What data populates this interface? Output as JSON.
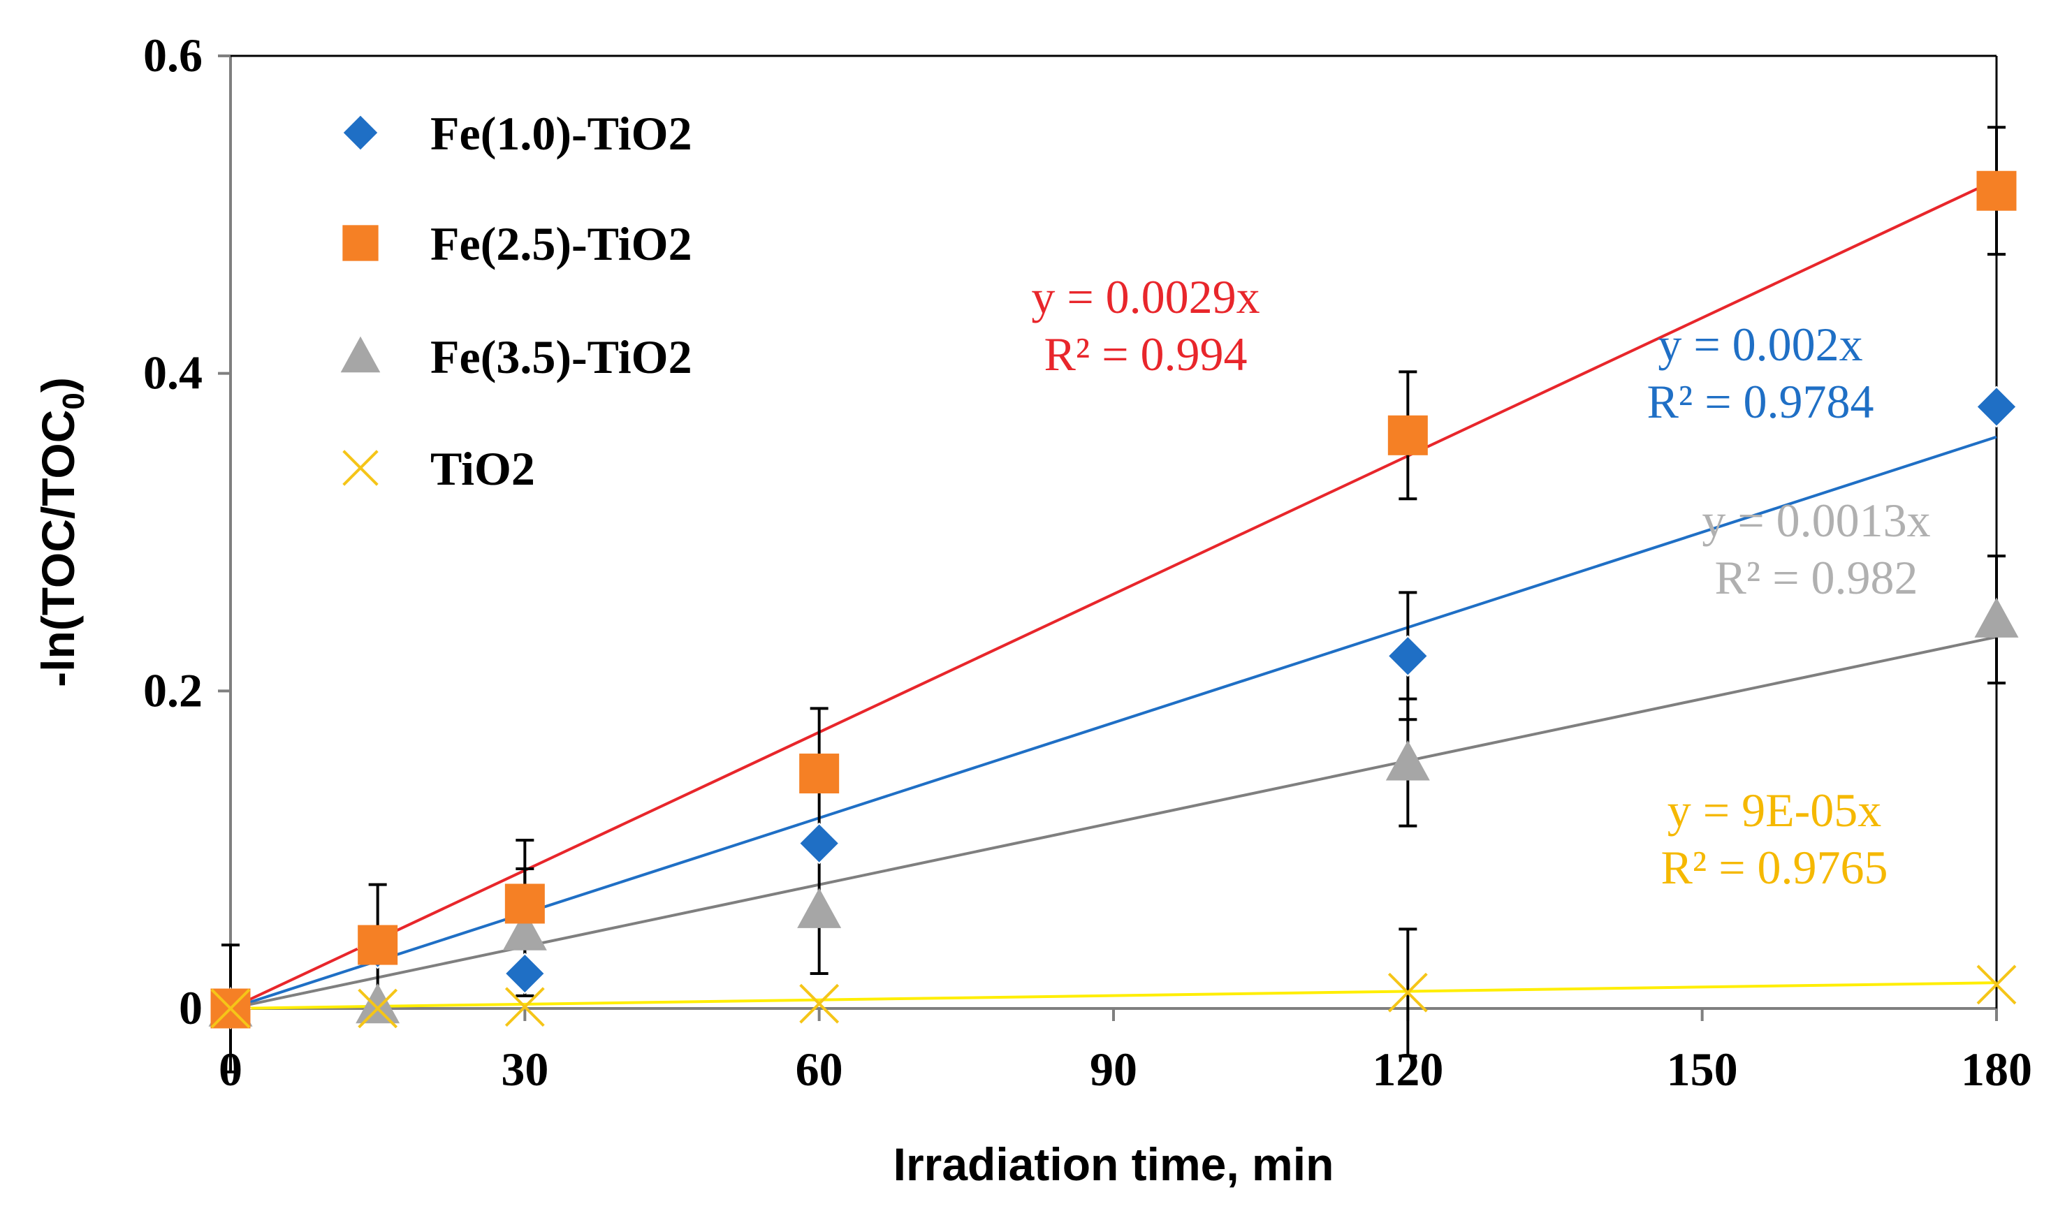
{
  "chart_data": {
    "type": "scatter",
    "xlabel": "Irradiation time, min",
    "ylabel_main": "-ln(TOC/TOC",
    "ylabel_sub": "0",
    "ylabel_end": ")",
    "xlim": [
      0,
      180
    ],
    "ylim": [
      0,
      0.6
    ],
    "xticks": [
      0,
      30,
      60,
      90,
      120,
      150,
      180
    ],
    "xtick_labels": [
      "0",
      "30",
      "60",
      "90",
      "120",
      "150",
      "180"
    ],
    "yticks": [
      0,
      0.2,
      0.4,
      0.6
    ],
    "ytick_labels": [
      "0",
      "0.2",
      "0.4",
      "0.6"
    ],
    "grid": false,
    "legend_position": "top-left",
    "series": [
      {
        "name": "Fe(1.0)-TiO2",
        "marker": "diamond",
        "color": "#1f6fc5",
        "x": [
          0,
          15,
          30,
          60,
          120,
          180
        ],
        "y": [
          0,
          0.038,
          0.022,
          0.104,
          0.222,
          0.379
        ],
        "err": [
          0,
          0,
          0,
          0,
          0.04,
          0
        ],
        "fit": {
          "slope": 0.002,
          "line_color": "#1f6fc5",
          "eq": "y = 0.002x",
          "r2": "R² = 0.9784"
        }
      },
      {
        "name": "Fe(2.5)-TiO2",
        "marker": "square",
        "color": "#f58025",
        "x": [
          0,
          15,
          30,
          60,
          120,
          180
        ],
        "y": [
          0,
          0.04,
          0.066,
          0.148,
          0.361,
          0.515
        ],
        "err": [
          0,
          0.038,
          0.04,
          0.041,
          0.04,
          0.04
        ],
        "fit": {
          "slope": 0.0029,
          "line_color": "#e8262b",
          "eq": "y = 0.0029x",
          "r2": "R² = 0.994"
        }
      },
      {
        "name": "Fe(3.5)-TiO2",
        "marker": "triangle",
        "color": "#a6a6a6",
        "x": [
          0,
          15,
          30,
          60,
          120,
          180
        ],
        "y": [
          0,
          0.002,
          0.048,
          0.062,
          0.155,
          0.245
        ],
        "err": [
          0,
          0,
          0.04,
          0.04,
          0.04,
          0.04
        ],
        "fit": {
          "slope": 0.0013,
          "line_color": "#7f7f7f",
          "eq": "y = 0.0013x",
          "r2": "R² = 0.982"
        }
      },
      {
        "name": "TiO2",
        "marker": "x",
        "color": "#f5c518",
        "x": [
          0,
          15,
          30,
          60,
          120,
          180
        ],
        "y": [
          0,
          0,
          0.001,
          0.003,
          0.01,
          0.015
        ],
        "err": [
          0.04,
          0,
          0,
          0,
          0.04,
          0
        ],
        "fit": {
          "slope": 9e-05,
          "line_color": "#ffee00",
          "eq": "y = 9E-05x",
          "r2": "R² = 0.9765"
        }
      }
    ]
  }
}
